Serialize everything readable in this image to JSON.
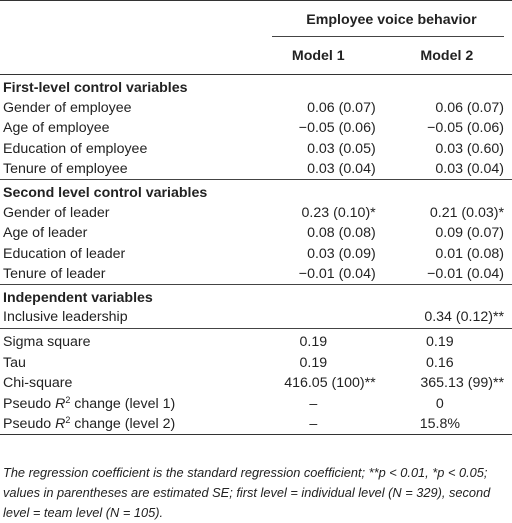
{
  "header": {
    "group_label": "Employee voice behavior",
    "model1": "Model 1",
    "model2": "Model 2"
  },
  "sections": [
    {
      "title": "First-level control variables",
      "rows": [
        {
          "label": "Gender of employee",
          "m1": "0.06 (0.07)",
          "m2": "0.06 (0.07)"
        },
        {
          "label": "Age of employee",
          "m1": "−0.05 (0.06)",
          "m2": "−0.05 (0.06)"
        },
        {
          "label": "Education of employee",
          "m1": "0.03 (0.05)",
          "m2": "0.03 (0.60)"
        },
        {
          "label": "Tenure of employee",
          "m1": "0.03 (0.04)",
          "m2": "0.03 (0.04)"
        }
      ]
    },
    {
      "title": "Second level control variables",
      "rows": [
        {
          "label": "Gender of leader",
          "m1": "0.23 (0.10)*",
          "m2": "0.21 (0.03)*"
        },
        {
          "label": "Age of leader",
          "m1": "0.08 (0.08)",
          "m2": "0.09 (0.07)"
        },
        {
          "label": "Education of leader",
          "m1": "0.03 (0.09)",
          "m2": "0.01 (0.08)"
        },
        {
          "label": "Tenure of leader",
          "m1": "−0.01 (0.04)",
          "m2": "−0.01 (0.04)"
        }
      ]
    },
    {
      "title": "Independent variables",
      "rows": [
        {
          "label": "Inclusive leadership",
          "m1": "",
          "m2": "0.34 (0.12)**"
        }
      ]
    }
  ],
  "summary": [
    {
      "label": "Sigma square",
      "m1": "0.19",
      "m2": "0.19"
    },
    {
      "label": "Tau",
      "m1": "0.19",
      "m2": "0.16"
    },
    {
      "label": "Chi-square",
      "m1": "416.05 (100)**",
      "m2": "365.13 (99)**"
    },
    {
      "label_pre": "Pseudo ",
      "label_var": "R",
      "label_sup": "2",
      "label_post": " change (level 1)",
      "m1": "–",
      "m2": "0"
    },
    {
      "label_pre": "Pseudo ",
      "label_var": "R",
      "label_sup": "2",
      "label_post": " change (level 2)",
      "m1": "–",
      "m2": "15.8%"
    }
  ],
  "footnote": "The regression coefficient is the standard regression coefficient; **p < 0.01, *p < 0.05; values in parentheses are estimated SE; first level = individual level (N = 329), second level = team level (N = 105)."
}
